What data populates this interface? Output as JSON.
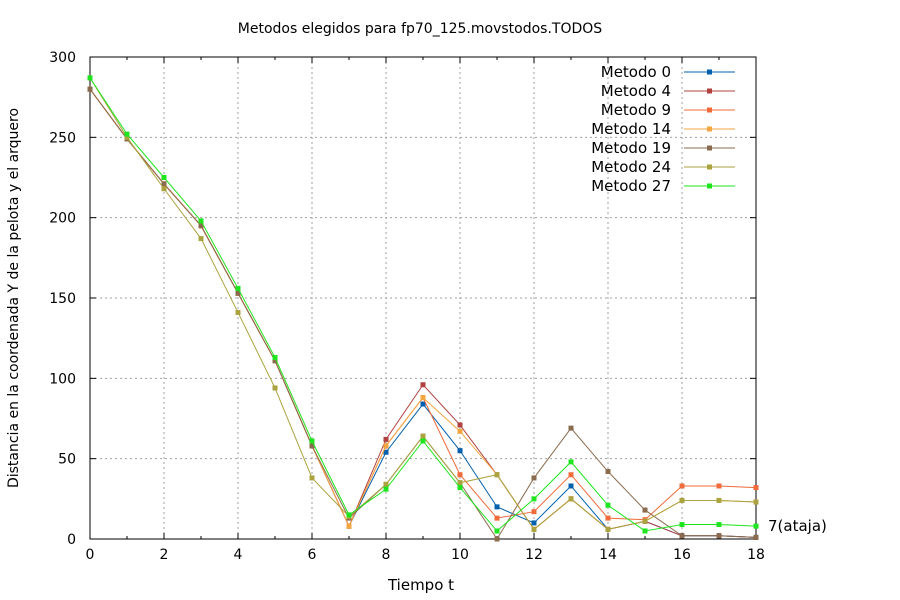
{
  "chart_data": {
    "type": "line",
    "title": "Metodos elegidos para fp70_125.movstodos.TODOS",
    "xlabel": "Tiempo t",
    "ylabel": "Distancia en la coordenada Y de la pelota y el arquero",
    "xlim": [
      0,
      18
    ],
    "ylim": [
      0,
      300
    ],
    "xticks": [
      0,
      2,
      4,
      6,
      8,
      10,
      12,
      14,
      16,
      18
    ],
    "yticks": [
      0,
      50,
      100,
      150,
      200,
      250,
      300
    ],
    "grid": true,
    "legend_position": "top-right",
    "x": [
      0,
      1,
      2,
      3,
      4,
      5,
      6,
      7,
      8,
      9,
      10,
      11,
      12,
      13,
      14,
      15,
      16,
      17,
      18
    ],
    "series": [
      {
        "name": "Metodo 0",
        "color": "#0060ad",
        "values": [
          280,
          249,
          221,
          195,
          153,
          111,
          58,
          8,
          54,
          84,
          55,
          20,
          10,
          33,
          6,
          11,
          2,
          2,
          1
        ]
      },
      {
        "name": "Metodo 4",
        "color": "#b2403f",
        "values": [
          280,
          249,
          221,
          195,
          153,
          111,
          58,
          8,
          62,
          96,
          71,
          40,
          6,
          25,
          6,
          11,
          2,
          2,
          1
        ]
      },
      {
        "name": "Metodo 9",
        "color": "#f06a3a",
        "values": [
          280,
          249,
          221,
          195,
          153,
          111,
          58,
          8,
          58,
          88,
          40,
          13,
          17,
          40,
          13,
          12,
          33,
          33,
          32
        ]
      },
      {
        "name": "Metodo 14",
        "color": "#f5a641",
        "values": [
          280,
          249,
          221,
          195,
          153,
          111,
          58,
          8,
          58,
          88,
          67,
          40,
          6,
          25,
          6,
          11,
          24,
          24,
          23
        ]
      },
      {
        "name": "Metodo 19",
        "color": "#8b6b4d",
        "values": [
          280,
          249,
          221,
          195,
          153,
          111,
          58,
          13,
          34,
          64,
          35,
          0,
          38,
          69,
          42,
          18,
          2,
          2,
          1
        ]
      },
      {
        "name": "Metodo 24",
        "color": "#aba33f",
        "values": [
          287,
          250,
          218,
          187,
          141,
          94,
          38,
          14,
          34,
          64,
          35,
          40,
          6,
          25,
          6,
          11,
          24,
          24,
          23
        ]
      },
      {
        "name": "Metodo 27",
        "color": "#1ee61e",
        "values": [
          287,
          252,
          225,
          198,
          156,
          113,
          61,
          15,
          31,
          61,
          32,
          5,
          25,
          48,
          21,
          5,
          9,
          9,
          8
        ]
      }
    ],
    "annotations": [
      {
        "text": "7(ataja)",
        "x": 18,
        "y": 8
      }
    ]
  }
}
